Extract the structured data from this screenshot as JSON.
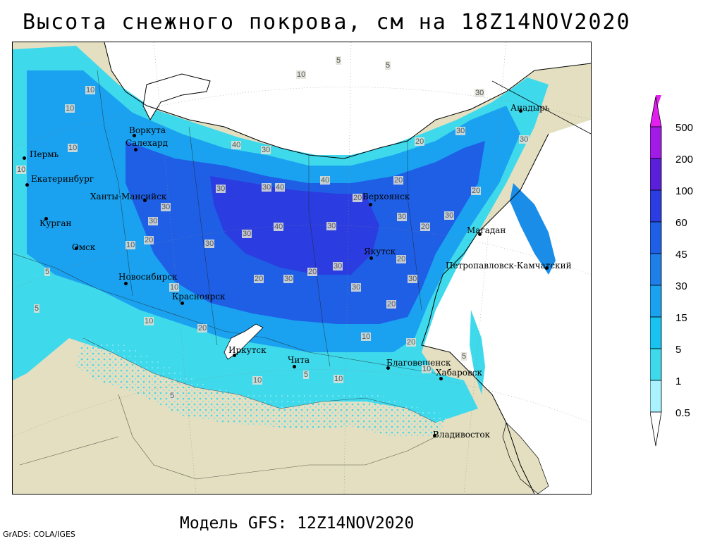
{
  "title": "Высота снежного покрова, см на 18Z14NOV2020",
  "footer": "Модель GFS: 12Z14NOV2020",
  "credit": "GrADS: COLA/IGES",
  "colors": {
    "land": "#e3dfc0",
    "ocean": "#ffffff",
    "snow_levels": [
      "#aaf2ff",
      "#7ee6f5",
      "#3fd9ec",
      "#19c2f0",
      "#1aa2f0",
      "#1f7fe8",
      "#1f5fe6",
      "#2b3de0",
      "#5a1fd8",
      "#a21ae6",
      "#e21ef0"
    ]
  },
  "legend": {
    "levels": [
      "0.5",
      "1",
      "5",
      "15",
      "30",
      "45",
      "60",
      "100",
      "200",
      "500"
    ]
  },
  "cities": [
    {
      "name": "Воркута",
      "label": "Воркута"
    },
    {
      "name": "Салехард",
      "label": "Салехард"
    },
    {
      "name": "Пермь",
      "label": "Пермь"
    },
    {
      "name": "Екатеринбург",
      "label": "Екатеринбург"
    },
    {
      "name": "Ханты-Мансийск",
      "label": "Ханты-Мансийск"
    },
    {
      "name": "Курган",
      "label": "Курган"
    },
    {
      "name": "Омск",
      "label": "Омск"
    },
    {
      "name": "Новосибирск",
      "label": "Новосибирск"
    },
    {
      "name": "Красноярск",
      "label": "Красноярск"
    },
    {
      "name": "Иркутск",
      "label": "Иркутск"
    },
    {
      "name": "Чита",
      "label": "Чита"
    },
    {
      "name": "Благовещенск",
      "label": "Благовещенск"
    },
    {
      "name": "Хабаровск",
      "label": "Хабаровск"
    },
    {
      "name": "Владивосток",
      "label": "Владивосток"
    },
    {
      "name": "Якутск",
      "label": "Якутск"
    },
    {
      "name": "Верхоянск",
      "label": "Верхоянск"
    },
    {
      "name": "Магадан",
      "label": "Магадан"
    },
    {
      "name": "Петропавловск-Камчатский",
      "label": "Петропавловск-Камчатский"
    },
    {
      "name": "Анадырь",
      "label": "Анадырь"
    }
  ],
  "contour_labels": [
    "10",
    "5",
    "5",
    "10",
    "30",
    "30",
    "20",
    "30",
    "40",
    "30",
    "10",
    "10",
    "10",
    "40",
    "30",
    "30",
    "20",
    "40",
    "40",
    "30",
    "20",
    "20",
    "30",
    "30",
    "20",
    "30",
    "30",
    "30",
    "10",
    "20",
    "30",
    "30",
    "20",
    "30",
    "10",
    "5",
    "5",
    "10",
    "20",
    "20",
    "30",
    "20",
    "30",
    "20",
    "10",
    "20",
    "10",
    "5",
    "10",
    "5",
    "10",
    "5"
  ]
}
